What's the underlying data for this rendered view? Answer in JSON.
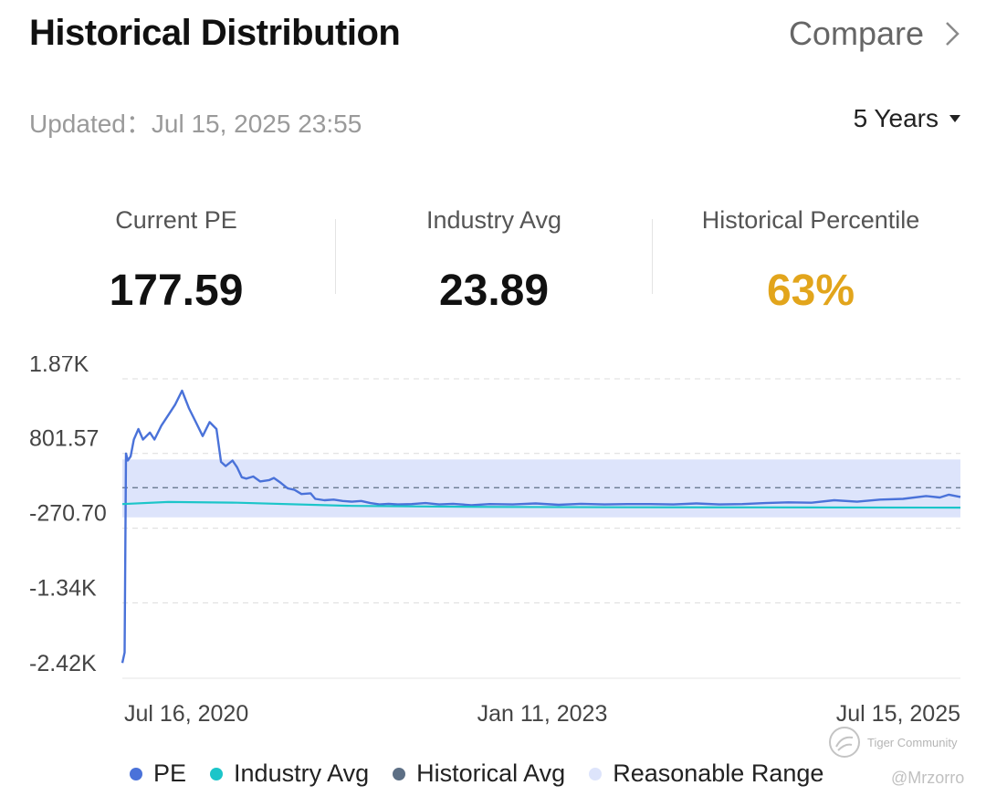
{
  "header": {
    "title": "Historical Distribution",
    "compare_label": "Compare",
    "updated_label": "Updated：",
    "updated_value": "Jul 15, 2025 23:55",
    "period_label": "5 Years"
  },
  "stats": [
    {
      "label": "Current PE",
      "value": "177.59"
    },
    {
      "label": "Industry Avg",
      "value": "23.89"
    },
    {
      "label": "Historical Percentile",
      "value": "63%"
    }
  ],
  "colors": {
    "pe": "#4a72d9",
    "industry_avg": "#1cc5c9",
    "historical_avg": "#5d6f85",
    "reasonable_range": "#dde4fb",
    "percentile": "#e2a51c"
  },
  "legend": [
    "PE",
    "Industry Avg",
    "Historical Avg",
    "Reasonable Range"
  ],
  "watermark": {
    "brand": "Tiger Community",
    "user": "@Mrzorro"
  },
  "chart_data": {
    "type": "line",
    "x_tick_labels": [
      "Jul 16, 2020",
      "Jan 11, 2023",
      "Jul 15, 2025"
    ],
    "y_tick_labels": [
      "1.87K",
      "801.57",
      "-270.70",
      "-1.34K",
      "-2.42K"
    ],
    "y_ticks": [
      1870,
      801.57,
      -270.7,
      -1340,
      -2420
    ],
    "ylim": [
      -2420,
      1870
    ],
    "xlim": [
      0,
      1825
    ],
    "grid": true,
    "legend_position": "bottom",
    "reasonable_range": [
      -115,
      715
    ],
    "historical_avg": 310,
    "series": [
      {
        "name": "PE",
        "x": [
          0,
          5,
          8,
          12,
          18,
          25,
          35,
          45,
          60,
          70,
          85,
          100,
          115,
          130,
          145,
          160,
          175,
          190,
          205,
          215,
          225,
          240,
          250,
          260,
          270,
          285,
          300,
          320,
          330,
          345,
          360,
          375,
          390,
          410,
          420,
          440,
          460,
          480,
          500,
          520,
          540,
          560,
          580,
          600,
          630,
          660,
          690,
          720,
          760,
          800,
          850,
          900,
          950,
          1000,
          1050,
          1100,
          1150,
          1200,
          1250,
          1300,
          1350,
          1400,
          1450,
          1500,
          1550,
          1600,
          1650,
          1700,
          1750,
          1780,
          1800,
          1825
        ],
        "y": [
          -2200,
          -2050,
          800,
          700,
          760,
          1000,
          1150,
          1000,
          1100,
          1000,
          1200,
          1350,
          1500,
          1700,
          1450,
          1250,
          1050,
          1250,
          1150,
          680,
          620,
          700,
          600,
          460,
          440,
          470,
          400,
          420,
          450,
          380,
          300,
          280,
          220,
          230,
          150,
          130,
          140,
          120,
          110,
          120,
          90,
          70,
          80,
          70,
          75,
          90,
          70,
          80,
          60,
          75,
          70,
          85,
          65,
          80,
          70,
          75,
          75,
          70,
          85,
          70,
          75,
          90,
          100,
          95,
          130,
          110,
          140,
          150,
          190,
          170,
          210,
          178
        ]
      },
      {
        "name": "Industry Avg",
        "x": [
          0,
          100,
          250,
          500,
          800,
          1100,
          1400,
          1825
        ],
        "y": [
          75,
          105,
          95,
          50,
          35,
          30,
          28,
          24
        ]
      }
    ]
  }
}
